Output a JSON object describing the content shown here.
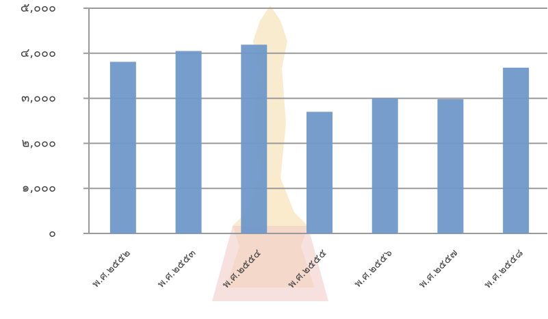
{
  "chart_data": {
    "type": "bar",
    "categories": [
      "พ.ศ.๒๕๕๒",
      "พ.ศ.๒๕๕๓",
      "พ.ศ.๒๕๕๔",
      "พ.ศ.๒๕๕๕",
      "พ.ศ.๒๕๕๖",
      "พ.ศ.๒๕๕๗",
      "พ.ศ.๒๕๕๘"
    ],
    "values": [
      3810,
      4050,
      4190,
      2700,
      3000,
      2980,
      3680
    ],
    "color": "#6f98c9",
    "ylim": [
      0,
      5000
    ],
    "yticks": [
      {
        "value": 0,
        "label": "๐"
      },
      {
        "value": 1000,
        "label": "๑,๐๐๐"
      },
      {
        "value": 2000,
        "label": "๒,๐๐๐"
      },
      {
        "value": 3000,
        "label": "๓,๐๐๐"
      },
      {
        "value": 4000,
        "label": "๔,๐๐๐"
      },
      {
        "value": 5000,
        "label": "๕,๐๐๐"
      }
    ],
    "grid": true
  }
}
